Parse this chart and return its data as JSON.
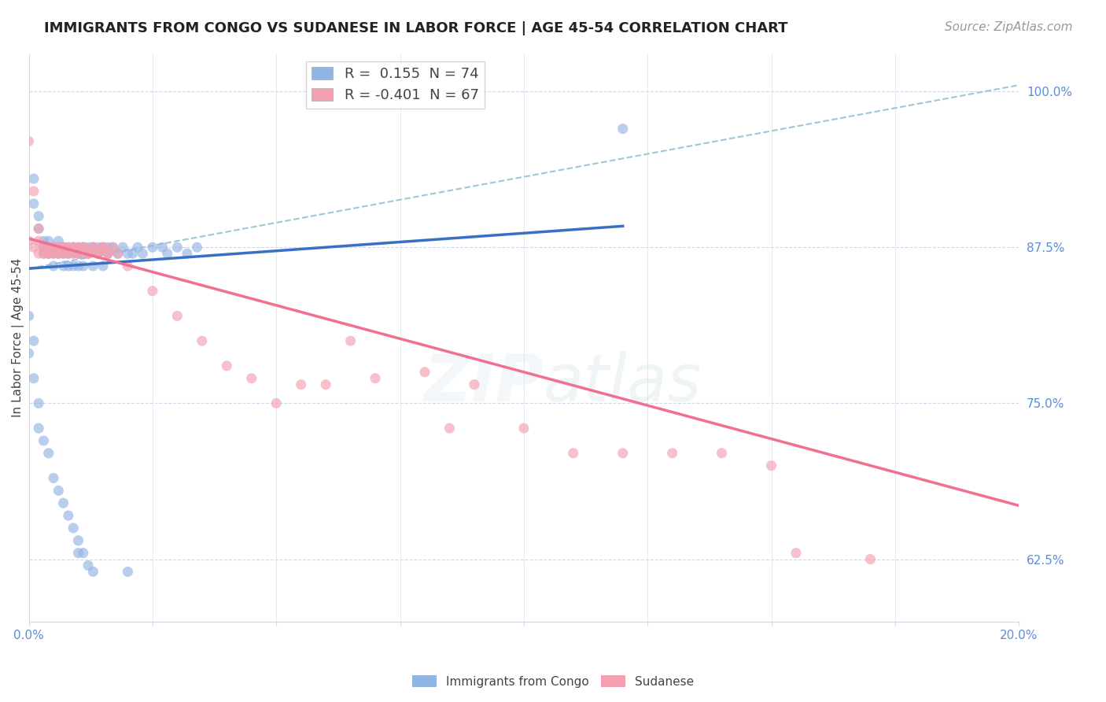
{
  "title": "IMMIGRANTS FROM CONGO VS SUDANESE IN LABOR FORCE | AGE 45-54 CORRELATION CHART",
  "source": "Source: ZipAtlas.com",
  "ylabel": "In Labor Force | Age 45-54",
  "xlim": [
    0.0,
    0.2
  ],
  "ylim": [
    0.575,
    1.03
  ],
  "yticks": [
    0.625,
    0.75,
    0.875,
    1.0
  ],
  "ytick_labels": [
    "62.5%",
    "75.0%",
    "87.5%",
    "100.0%"
  ],
  "xticks": [
    0.0,
    0.025,
    0.05,
    0.075,
    0.1,
    0.125,
    0.15,
    0.175,
    0.2
  ],
  "xtick_labels": [
    "0.0%",
    "",
    "",
    "",
    "",
    "",
    "",
    "",
    "20.0%"
  ],
  "congo_R": 0.155,
  "congo_N": 74,
  "sudanese_R": -0.401,
  "sudanese_N": 67,
  "congo_color": "#92b4e3",
  "sudanese_color": "#f4a0b0",
  "congo_line_color": "#3a6fc4",
  "sudanese_line_color": "#f07090",
  "dashed_line_color": "#9ec8d8",
  "background_color": "#ffffff",
  "grid_color": "#d0d8e8",
  "congo_scatter_x": [
    0.001,
    0.001,
    0.002,
    0.002,
    0.003,
    0.003,
    0.003,
    0.004,
    0.004,
    0.004,
    0.005,
    0.005,
    0.005,
    0.006,
    0.006,
    0.006,
    0.007,
    0.007,
    0.007,
    0.008,
    0.008,
    0.008,
    0.009,
    0.009,
    0.009,
    0.01,
    0.01,
    0.01,
    0.011,
    0.011,
    0.011,
    0.012,
    0.012,
    0.013,
    0.013,
    0.014,
    0.014,
    0.015,
    0.015,
    0.016,
    0.016,
    0.017,
    0.018,
    0.019,
    0.02,
    0.021,
    0.022,
    0.023,
    0.025,
    0.027,
    0.028,
    0.03,
    0.032,
    0.034,
    0.0,
    0.0,
    0.001,
    0.001,
    0.002,
    0.002,
    0.003,
    0.004,
    0.005,
    0.006,
    0.007,
    0.008,
    0.009,
    0.01,
    0.01,
    0.011,
    0.012,
    0.013,
    0.02,
    0.12
  ],
  "congo_scatter_y": [
    0.91,
    0.93,
    0.89,
    0.9,
    0.88,
    0.875,
    0.87,
    0.88,
    0.875,
    0.87,
    0.875,
    0.87,
    0.86,
    0.88,
    0.875,
    0.87,
    0.875,
    0.87,
    0.86,
    0.875,
    0.87,
    0.86,
    0.875,
    0.87,
    0.86,
    0.875,
    0.87,
    0.86,
    0.875,
    0.87,
    0.86,
    0.875,
    0.87,
    0.875,
    0.86,
    0.875,
    0.87,
    0.875,
    0.86,
    0.875,
    0.87,
    0.875,
    0.87,
    0.875,
    0.87,
    0.87,
    0.875,
    0.87,
    0.875,
    0.875,
    0.87,
    0.875,
    0.87,
    0.875,
    0.82,
    0.79,
    0.8,
    0.77,
    0.75,
    0.73,
    0.72,
    0.71,
    0.69,
    0.68,
    0.67,
    0.66,
    0.65,
    0.64,
    0.63,
    0.63,
    0.62,
    0.615,
    0.615,
    0.97
  ],
  "sudanese_scatter_x": [
    0.0,
    0.001,
    0.002,
    0.002,
    0.003,
    0.003,
    0.004,
    0.004,
    0.005,
    0.005,
    0.006,
    0.006,
    0.007,
    0.007,
    0.008,
    0.008,
    0.009,
    0.009,
    0.01,
    0.01,
    0.011,
    0.012,
    0.013,
    0.014,
    0.015,
    0.016,
    0.017,
    0.018,
    0.02,
    0.025,
    0.03,
    0.035,
    0.04,
    0.045,
    0.05,
    0.055,
    0.06,
    0.065,
    0.07,
    0.08,
    0.085,
    0.09,
    0.1,
    0.11,
    0.12,
    0.13,
    0.14,
    0.15,
    0.155,
    0.17,
    0.0,
    0.001,
    0.002,
    0.003,
    0.004,
    0.005,
    0.006,
    0.007,
    0.008,
    0.009,
    0.01,
    0.011,
    0.012,
    0.013,
    0.014,
    0.015,
    0.016
  ],
  "sudanese_scatter_y": [
    0.96,
    0.92,
    0.89,
    0.88,
    0.875,
    0.87,
    0.875,
    0.87,
    0.875,
    0.87,
    0.875,
    0.87,
    0.875,
    0.87,
    0.875,
    0.87,
    0.875,
    0.87,
    0.875,
    0.87,
    0.875,
    0.87,
    0.875,
    0.87,
    0.875,
    0.87,
    0.875,
    0.87,
    0.86,
    0.84,
    0.82,
    0.8,
    0.78,
    0.77,
    0.75,
    0.765,
    0.765,
    0.8,
    0.77,
    0.775,
    0.73,
    0.765,
    0.73,
    0.71,
    0.71,
    0.71,
    0.71,
    0.7,
    0.63,
    0.625,
    0.88,
    0.875,
    0.87,
    0.875,
    0.87,
    0.875,
    0.87,
    0.875,
    0.87,
    0.875,
    0.87,
    0.875,
    0.87,
    0.875,
    0.87,
    0.875,
    0.87
  ],
  "congo_trend_x": [
    0.0,
    0.12
  ],
  "congo_trend_y": [
    0.858,
    0.892
  ],
  "sudanese_trend_x": [
    0.0,
    0.2
  ],
  "sudanese_trend_y": [
    0.882,
    0.668
  ],
  "dashed_trend_x": [
    0.0,
    0.2
  ],
  "dashed_trend_y": [
    0.858,
    1.005
  ],
  "title_fontsize": 13,
  "label_fontsize": 11,
  "tick_fontsize": 11,
  "legend_fontsize": 13,
  "source_fontsize": 11,
  "watermark_fontsize": 60,
  "watermark_alpha": 0.18
}
